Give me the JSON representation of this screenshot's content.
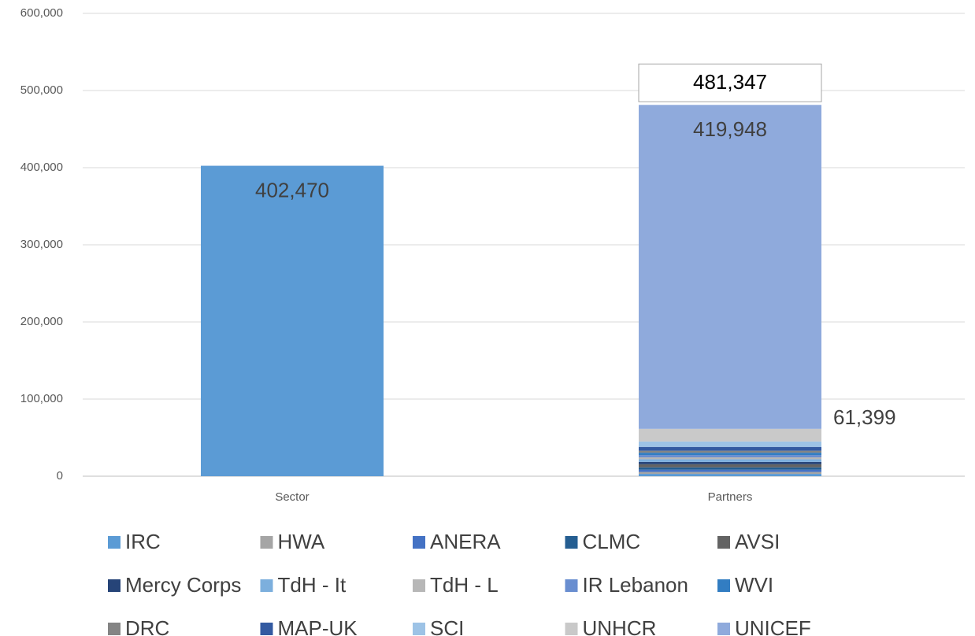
{
  "chart_data": {
    "type": "stacked_bar",
    "categories": [
      "Sector",
      "Partners"
    ],
    "series": [
      {
        "name": "IRC",
        "color": "#5b9bd5",
        "values": [
          402470,
          3000
        ],
        "value_labels": [
          "402,470",
          null
        ]
      },
      {
        "name": "HWA",
        "color": "#a5a5a5",
        "values": [
          null,
          2500
        ]
      },
      {
        "name": "ANERA",
        "color": "#4472c4",
        "values": [
          null,
          3000
        ]
      },
      {
        "name": "CLMC",
        "color": "#255e91",
        "values": [
          null,
          3000
        ]
      },
      {
        "name": "AVSI",
        "color": "#636363",
        "values": [
          null,
          4000
        ]
      },
      {
        "name": "Mercy Corps",
        "color": "#264478",
        "values": [
          null,
          3000
        ]
      },
      {
        "name": "TdH - It",
        "color": "#7cafdd",
        "values": [
          null,
          3500
        ]
      },
      {
        "name": "TdH - L",
        "color": "#b7b7b7",
        "values": [
          null,
          2500
        ]
      },
      {
        "name": "IR Lebanon",
        "color": "#698ed0",
        "values": [
          null,
          3000
        ]
      },
      {
        "name": "WVI",
        "color": "#327dc2",
        "values": [
          null,
          3000
        ]
      },
      {
        "name": "DRC",
        "color": "#848484",
        "values": [
          null,
          2500
        ]
      },
      {
        "name": "MAP-UK",
        "color": "#335aa1",
        "values": [
          null,
          5000
        ]
      },
      {
        "name": "SCI",
        "color": "#9dc3e6",
        "values": [
          null,
          7000
        ]
      },
      {
        "name": "UNHCR",
        "color": "#c9c9c9",
        "values": [
          null,
          16399
        ]
      },
      {
        "name": "UNICEF",
        "color": "#8faadc",
        "values": [
          null,
          419948
        ],
        "value_labels": [
          null,
          "419,948"
        ]
      }
    ],
    "annotations": [
      {
        "text": "481,347"
      },
      {
        "text": "61,399"
      }
    ],
    "ylim": [
      0,
      600000
    ],
    "yticks": [
      {
        "value": 0,
        "label": "0"
      },
      {
        "value": 100000,
        "label": "100,000"
      },
      {
        "value": 200000,
        "label": "200,000"
      },
      {
        "value": 300000,
        "label": "300,000"
      },
      {
        "value": 400000,
        "label": "400,000"
      },
      {
        "value": 500000,
        "label": "500,000"
      },
      {
        "value": 600000,
        "label": "600,000"
      }
    ],
    "grid": true,
    "legend": "bottom"
  }
}
